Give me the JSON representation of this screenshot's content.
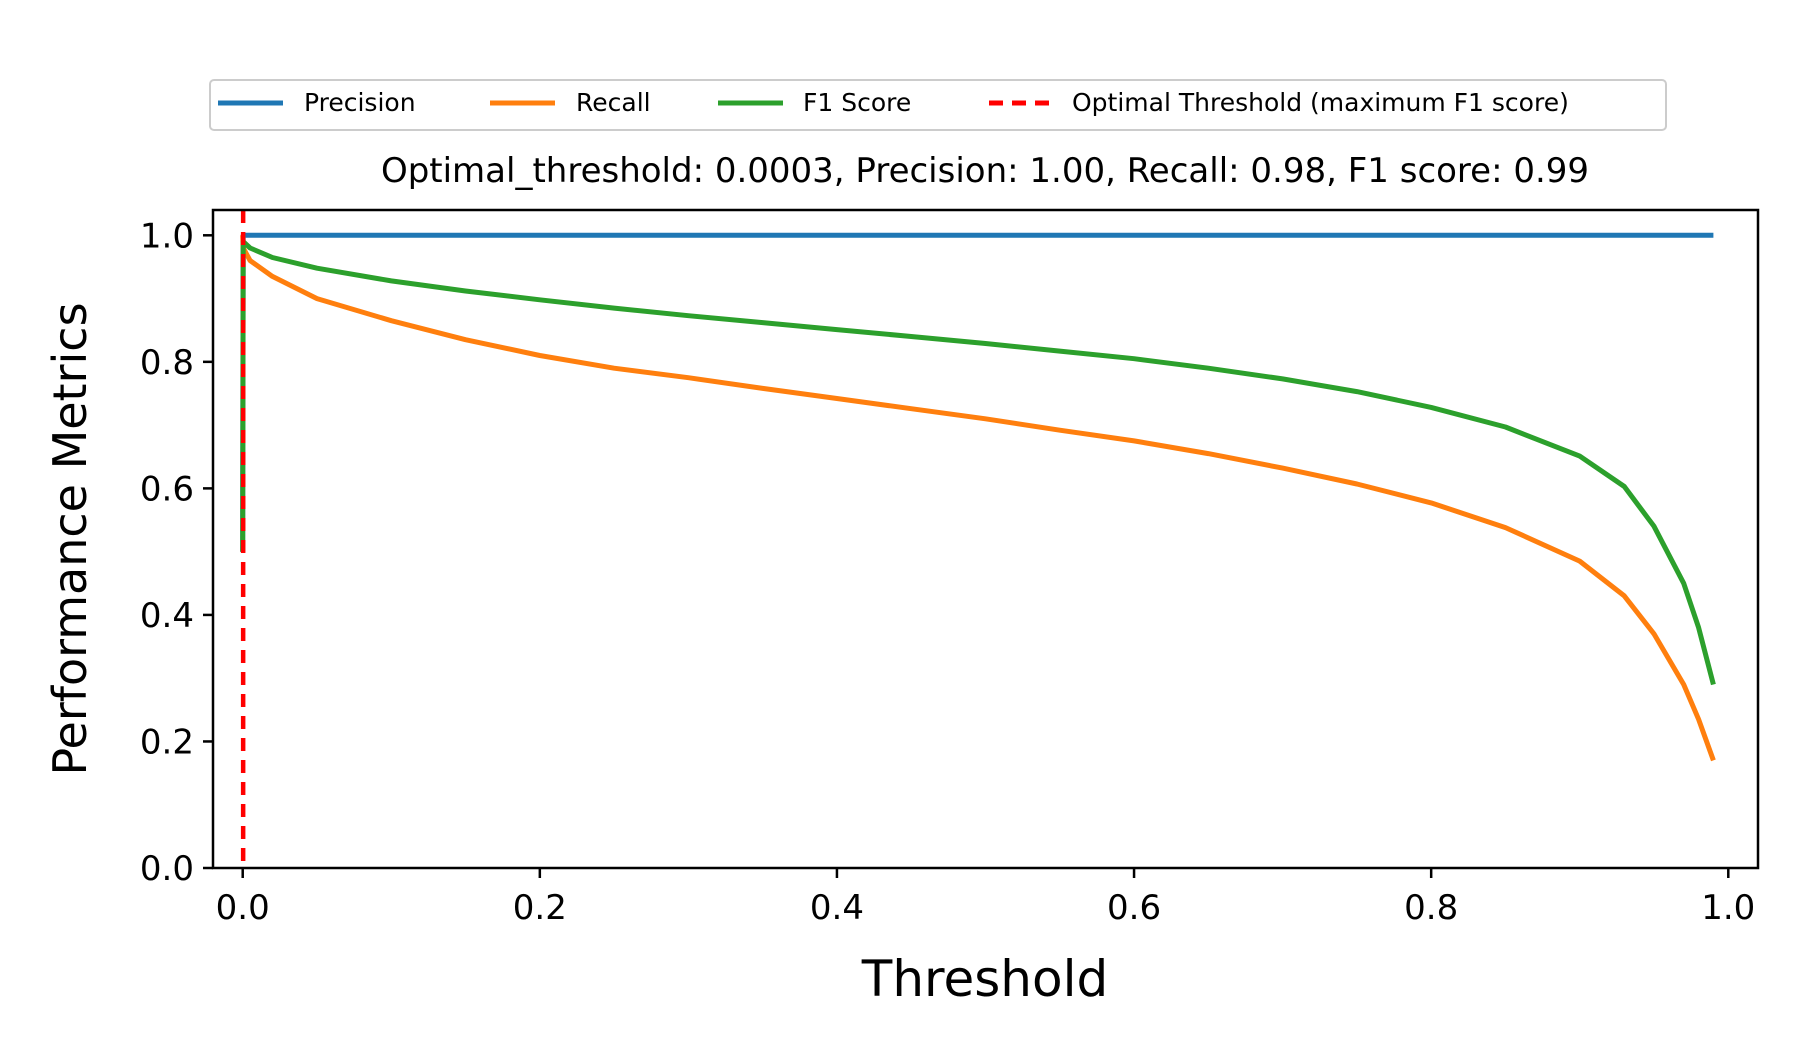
{
  "chart_data": {
    "type": "line",
    "title": "Optimal_threshold: 0.0003, Precision: 1.00, Recall: 0.98, F1 score: 0.99",
    "xlabel": "Threshold",
    "ylabel": "Performance Metrics",
    "xlim": [
      -0.02,
      1.02
    ],
    "ylim": [
      0.0,
      1.04
    ],
    "xticks": [
      0.0,
      0.2,
      0.4,
      0.6,
      0.8,
      1.0
    ],
    "xtick_labels": [
      "0.0",
      "0.2",
      "0.4",
      "0.6",
      "0.8",
      "1.0"
    ],
    "yticks": [
      0.0,
      0.2,
      0.4,
      0.6,
      0.8,
      1.0
    ],
    "ytick_labels": [
      "0.0",
      "0.2",
      "0.4",
      "0.6",
      "0.8",
      "1.0"
    ],
    "grid": false,
    "legend_position": "top-center",
    "series": [
      {
        "name": "Precision",
        "color": "#1f77b4",
        "x": [
          0.0,
          0.0,
          0.0003,
          0.0003,
          0.99
        ],
        "y": [
          0.5,
          0.6,
          1.0,
          1.0,
          1.0
        ]
      },
      {
        "name": "Recall",
        "color": "#ff7f0e",
        "x": [
          0.0,
          0.0003,
          0.005,
          0.02,
          0.05,
          0.1,
          0.15,
          0.2,
          0.25,
          0.3,
          0.35,
          0.4,
          0.45,
          0.5,
          0.55,
          0.6,
          0.65,
          0.7,
          0.75,
          0.8,
          0.85,
          0.9,
          0.93,
          0.95,
          0.97,
          0.98,
          0.99
        ],
        "y": [
          1.0,
          0.98,
          0.96,
          0.935,
          0.9,
          0.865,
          0.835,
          0.81,
          0.79,
          0.775,
          0.758,
          0.742,
          0.726,
          0.71,
          0.692,
          0.675,
          0.655,
          0.632,
          0.607,
          0.577,
          0.538,
          0.485,
          0.43,
          0.37,
          0.29,
          0.235,
          0.17
        ]
      },
      {
        "name": "F1 Score",
        "color": "#2ca02c",
        "x": [
          0.0,
          0.0003,
          0.005,
          0.02,
          0.05,
          0.1,
          0.15,
          0.2,
          0.25,
          0.3,
          0.35,
          0.4,
          0.45,
          0.5,
          0.55,
          0.6,
          0.65,
          0.7,
          0.75,
          0.8,
          0.85,
          0.9,
          0.93,
          0.95,
          0.97,
          0.98,
          0.99
        ],
        "y": [
          0.5,
          0.99,
          0.98,
          0.965,
          0.948,
          0.928,
          0.912,
          0.898,
          0.885,
          0.873,
          0.862,
          0.851,
          0.84,
          0.829,
          0.817,
          0.805,
          0.79,
          0.773,
          0.753,
          0.728,
          0.697,
          0.651,
          0.603,
          0.54,
          0.45,
          0.38,
          0.29
        ]
      }
    ],
    "vertical_line": {
      "name": "Optimal Threshold (maximum F1 score)",
      "color": "#ff0000",
      "x": 0.0003,
      "style": "dashed"
    },
    "legend": [
      {
        "label": "Precision",
        "color": "#1f77b4",
        "style": "solid"
      },
      {
        "label": "Recall",
        "color": "#ff7f0e",
        "style": "solid"
      },
      {
        "label": "F1 Score",
        "color": "#2ca02c",
        "style": "solid"
      },
      {
        "label": "Optimal Threshold (maximum F1 score)",
        "color": "#ff0000",
        "style": "dashed"
      }
    ]
  }
}
